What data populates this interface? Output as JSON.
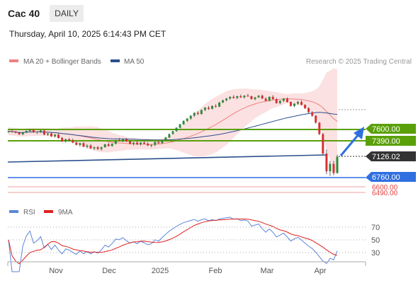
{
  "header": {
    "title": "Cac 40",
    "timeframe": "DAILY"
  },
  "datetime": "Thursday, April 10, 2025 6:14:43 PM CET",
  "legend": {
    "bollinger": {
      "label": "MA 20 + Bollinger Bands",
      "color": "#f08080"
    },
    "ma50": {
      "label": "MA 50",
      "color": "#2c4f8c"
    },
    "credit": "Research © 2025 Trading Central"
  },
  "levels": [
    {
      "value": "7600.00",
      "kind": "resistance",
      "color": "#5aa00a"
    },
    {
      "value": "7390.00",
      "kind": "resistance",
      "color": "#5aa00a"
    },
    {
      "value": "7126.02",
      "kind": "last-price",
      "color": "#333333"
    },
    {
      "value": "6760.00",
      "kind": "support",
      "color": "#2f6fe0"
    },
    {
      "value": "6600.00",
      "kind": "support",
      "color": "#e04040"
    },
    {
      "value": "6490.00",
      "kind": "support",
      "color": "#e04040"
    }
  ],
  "rsi": {
    "legend": [
      {
        "label": "RSI",
        "color": "#5b86d8"
      },
      {
        "label": "9MA",
        "color": "#e02020"
      }
    ],
    "ticks": [
      "70",
      "50",
      "30"
    ]
  },
  "x_axis": {
    "labels": [
      "Nov",
      "Dec",
      "2025",
      "Feb",
      "Mar",
      "Apr"
    ]
  },
  "chart_data": {
    "type": "candlestick",
    "y_levels": [
      7600,
      7390,
      7126.02,
      6760,
      6600,
      6490
    ],
    "series": [
      {
        "name": "MA 20 + Bollinger Bands",
        "color": "#f08080"
      },
      {
        "name": "MA 50",
        "color": "#2c4f8c"
      }
    ],
    "candles": [
      [
        7555,
        7580,
        7535,
        7570
      ],
      [
        7570,
        7600,
        7545,
        7555
      ],
      [
        7555,
        7575,
        7530,
        7545
      ],
      [
        7545,
        7560,
        7505,
        7515
      ],
      [
        7515,
        7560,
        7500,
        7548
      ],
      [
        7548,
        7585,
        7535,
        7575
      ],
      [
        7575,
        7610,
        7560,
        7595
      ],
      [
        7595,
        7605,
        7540,
        7550
      ],
      [
        7550,
        7570,
        7520,
        7560
      ],
      [
        7560,
        7590,
        7540,
        7580
      ],
      [
        7580,
        7590,
        7500,
        7510
      ],
      [
        7510,
        7540,
        7490,
        7530
      ],
      [
        7530,
        7545,
        7470,
        7480
      ],
      [
        7480,
        7520,
        7460,
        7510
      ],
      [
        7510,
        7530,
        7440,
        7450
      ],
      [
        7450,
        7470,
        7380,
        7390
      ],
      [
        7390,
        7440,
        7370,
        7430
      ],
      [
        7430,
        7450,
        7400,
        7410
      ],
      [
        7410,
        7440,
        7360,
        7370
      ],
      [
        7370,
        7390,
        7320,
        7330
      ],
      [
        7330,
        7370,
        7300,
        7360
      ],
      [
        7360,
        7380,
        7290,
        7300
      ],
      [
        7300,
        7340,
        7270,
        7320
      ],
      [
        7320,
        7345,
        7260,
        7270
      ],
      [
        7270,
        7300,
        7240,
        7290
      ],
      [
        7290,
        7310,
        7240,
        7260
      ],
      [
        7260,
        7300,
        7230,
        7290
      ],
      [
        7290,
        7350,
        7280,
        7340
      ],
      [
        7340,
        7370,
        7300,
        7310
      ],
      [
        7310,
        7360,
        7300,
        7350
      ],
      [
        7350,
        7420,
        7340,
        7410
      ],
      [
        7410,
        7450,
        7390,
        7400
      ],
      [
        7400,
        7440,
        7380,
        7430
      ],
      [
        7430,
        7450,
        7380,
        7390
      ],
      [
        7390,
        7410,
        7340,
        7350
      ],
      [
        7350,
        7380,
        7320,
        7370
      ],
      [
        7370,
        7400,
        7330,
        7340
      ],
      [
        7340,
        7380,
        7320,
        7370
      ],
      [
        7370,
        7400,
        7340,
        7350
      ],
      [
        7350,
        7380,
        7310,
        7320
      ],
      [
        7320,
        7340,
        7290,
        7330
      ],
      [
        7330,
        7390,
        7310,
        7380
      ],
      [
        7380,
        7420,
        7350,
        7360
      ],
      [
        7360,
        7420,
        7350,
        7410
      ],
      [
        7410,
        7470,
        7400,
        7460
      ],
      [
        7460,
        7530,
        7450,
        7520
      ],
      [
        7520,
        7580,
        7510,
        7570
      ],
      [
        7570,
        7640,
        7560,
        7630
      ],
      [
        7630,
        7700,
        7620,
        7690
      ],
      [
        7690,
        7760,
        7680,
        7750
      ],
      [
        7750,
        7800,
        7730,
        7790
      ],
      [
        7790,
        7850,
        7770,
        7840
      ],
      [
        7840,
        7900,
        7820,
        7890
      ],
      [
        7890,
        7920,
        7850,
        7870
      ],
      [
        7870,
        7950,
        7860,
        7940
      ],
      [
        7940,
        7990,
        7920,
        7980
      ],
      [
        7980,
        8010,
        7940,
        7960
      ],
      [
        7960,
        8020,
        7950,
        8010
      ],
      [
        8010,
        8040,
        7980,
        8000
      ],
      [
        8000,
        8080,
        7990,
        8070
      ],
      [
        8070,
        8120,
        8060,
        8110
      ],
      [
        8110,
        8150,
        8090,
        8140
      ],
      [
        8140,
        8180,
        8120,
        8170
      ],
      [
        8170,
        8200,
        8140,
        8150
      ],
      [
        8150,
        8190,
        8130,
        8180
      ],
      [
        8180,
        8210,
        8150,
        8160
      ],
      [
        8160,
        8200,
        8140,
        8190
      ],
      [
        8190,
        8220,
        8170,
        8180
      ],
      [
        8180,
        8190,
        8120,
        8130
      ],
      [
        8130,
        8170,
        8110,
        8160
      ],
      [
        8160,
        8200,
        8150,
        8190
      ],
      [
        8190,
        8210,
        8130,
        8140
      ],
      [
        8140,
        8160,
        8090,
        8100
      ],
      [
        8100,
        8180,
        8090,
        8170
      ],
      [
        8170,
        8200,
        8120,
        8130
      ],
      [
        8130,
        8150,
        8050,
        8060
      ],
      [
        8060,
        8110,
        8040,
        8100
      ],
      [
        8100,
        8150,
        8080,
        8140
      ],
      [
        8140,
        8160,
        8070,
        8080
      ],
      [
        8080,
        8090,
        8000,
        8010
      ],
      [
        8010,
        8060,
        7990,
        8050
      ],
      [
        8050,
        8100,
        8030,
        8080
      ],
      [
        8080,
        8110,
        8020,
        8030
      ],
      [
        8030,
        8040,
        7960,
        7970
      ],
      [
        7970,
        7990,
        7880,
        7900
      ],
      [
        7900,
        7920,
        7820,
        7840
      ],
      [
        7840,
        7850,
        7700,
        7720
      ],
      [
        7720,
        7730,
        7500,
        7520
      ],
      [
        7520,
        7540,
        7150,
        7180
      ],
      [
        7180,
        7250,
        6820,
        6870
      ],
      [
        6870,
        7050,
        6790,
        7000
      ],
      [
        7000,
        7050,
        6800,
        6840
      ],
      [
        6840,
        7160,
        6830,
        7126
      ]
    ]
  }
}
